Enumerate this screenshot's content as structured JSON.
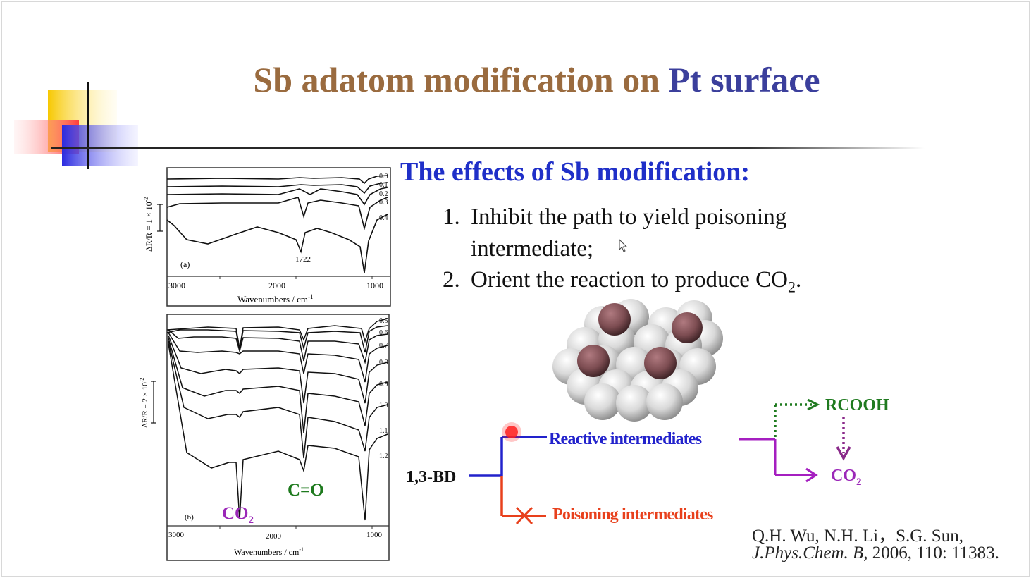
{
  "slide": {
    "title_part1": "Sb adatom modification on",
    "title_part2": "Pt surface",
    "effects_heading": "The effects of Sb modification:",
    "items": [
      {
        "number": "1.",
        "line1": "Inhibit the  path to yield poisoning",
        "line2": "intermediate;"
      },
      {
        "number": "2.",
        "text": "Orient the reaction to produce CO",
        "subscript": "2",
        "end": "."
      }
    ],
    "reference": {
      "authors": "Q.H. Wu, N.H. Li，S.G. Sun,",
      "journal": "J.Phys.Chem. B,",
      "citation": " 2006, 110: 11383."
    }
  },
  "spectra": {
    "panel_a": {
      "label": "(a)",
      "ylabel": "ΔR/R = 1 × 10",
      "ylabel_exp": "-2",
      "x_ticks": [
        "3000",
        "2000",
        "1000"
      ],
      "xlabel": "Wavenumbers / cm",
      "xlabel_exp": "-1",
      "peak_label": "1722",
      "curve_labels": [
        "0.0",
        "0.1",
        "0.2",
        "0.3",
        "0.4"
      ]
    },
    "panel_b": {
      "label": "(b)",
      "ylabel": "ΔR/R = 2 × 10",
      "ylabel_exp": "-2",
      "x_ticks": [
        "3000",
        "2000",
        "1000"
      ],
      "xlabel": "Wavenumbers / cm",
      "xlabel_exp": "-1",
      "curve_labels": [
        "0.5",
        "0.6",
        "0.7",
        "0.8",
        "0.9",
        "1.0",
        "1.1",
        "1.2"
      ],
      "annotation_co2": "CO",
      "annotation_co2_sub": "2",
      "annotation_co": "C=O"
    }
  },
  "scheme": {
    "reactant": "1,3-BD",
    "reactive": "Reactive intermediates",
    "poisoning": "Poisoning intermediates",
    "rcooh": "RCOOH",
    "co2": "CO",
    "co2_sub": "2"
  },
  "colors": {
    "title_brown": "#9a6b3f",
    "title_blue": "#3b3f9c",
    "heading_blue": "#1f2fc8",
    "pathway_blue": "#2222cc",
    "pathway_red": "#e8401c",
    "pathway_purple": "#a51fc0",
    "pathway_green": "#1f7a1f",
    "co2_purple": "#9b27b8",
    "co_green": "#1e7a1e"
  },
  "icons": [
    "slide-corner-decoration",
    "mouse-pointer-icon",
    "red-dot-marker-icon",
    "cross-mark-icon"
  ]
}
